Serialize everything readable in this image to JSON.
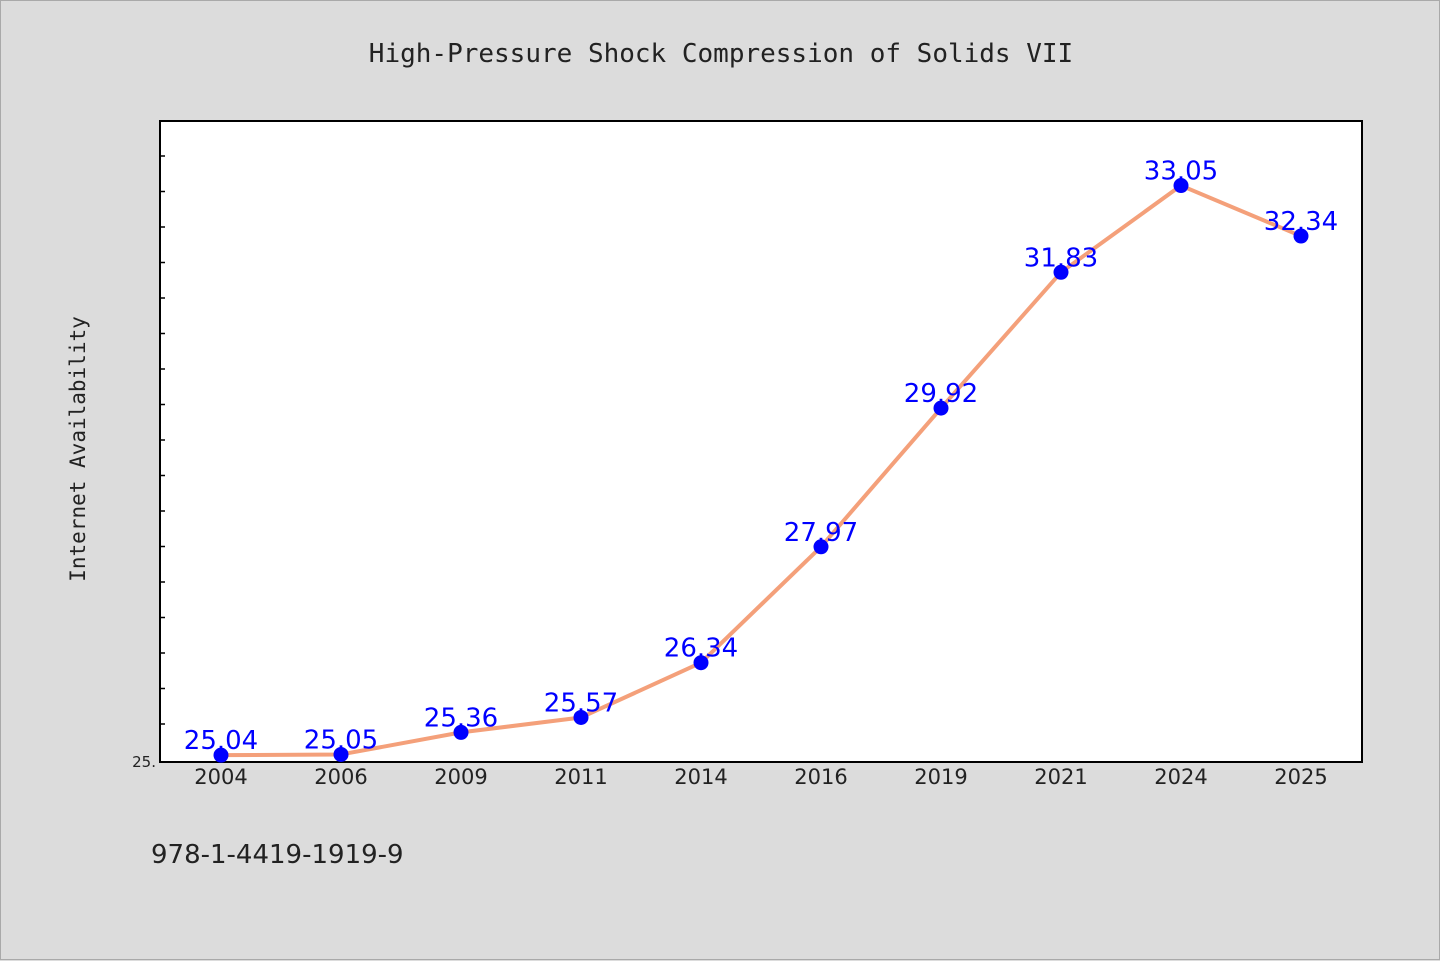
{
  "chart_data": {
    "type": "line",
    "title": "High-Pressure Shock Compression of Solids VII",
    "xlabel": "",
    "ylabel": "Internet Availability",
    "categories": [
      "2004",
      "2006",
      "2009",
      "2011",
      "2014",
      "2016",
      "2019",
      "2021",
      "2024",
      "2025"
    ],
    "series": [
      {
        "values": [
          25.04,
          25.05,
          25.36,
          25.57,
          26.34,
          27.97,
          29.92,
          31.83,
          33.05,
          32.34
        ],
        "data_labels": [
          "25.04",
          "25.05",
          "25.36",
          "25.57",
          "26.34",
          "27.97",
          "29.92",
          "31.83",
          "33.05",
          "32.34"
        ],
        "line_color": "#f4a07a",
        "marker_color": "#0000ff"
      }
    ],
    "ylim": [
      25.0,
      34.0
    ],
    "y_tick_label": "25.",
    "grid": false,
    "legend": "none"
  },
  "footer": {
    "isbn": "978-1-4419-1919-9"
  }
}
